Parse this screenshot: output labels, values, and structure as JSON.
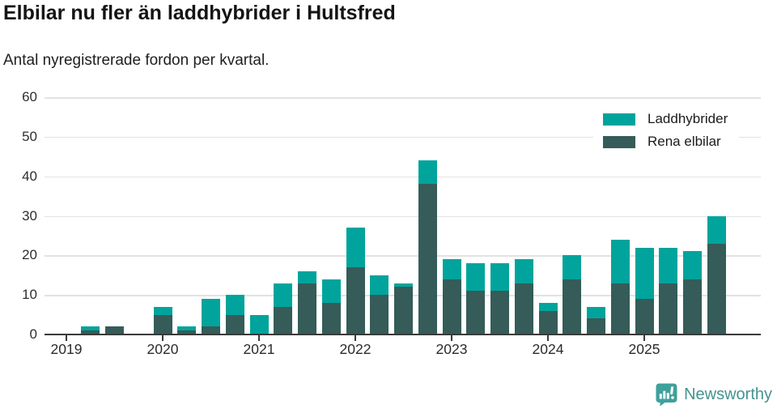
{
  "header": {
    "title": "Elbilar nu fler än laddhybrider i Hultsfred",
    "subtitle": "Antal nyregistrerade fordon per kvartal."
  },
  "chart_data": {
    "type": "bar",
    "stacked": true,
    "title": "Elbilar nu fler än laddhybrider i Hultsfred",
    "subtitle": "Antal nyregistrerade fordon per kvartal.",
    "x_unit": "quarter",
    "quarters": [
      "2019-Q1",
      "2019-Q2",
      "2019-Q3",
      "2019-Q4",
      "2020-Q1",
      "2020-Q2",
      "2020-Q3",
      "2020-Q4",
      "2021-Q1",
      "2021-Q2",
      "2021-Q3",
      "2021-Q4",
      "2022-Q1",
      "2022-Q2",
      "2022-Q3",
      "2022-Q4",
      "2023-Q1",
      "2023-Q2",
      "2023-Q3",
      "2023-Q4",
      "2024-Q1",
      "2024-Q2",
      "2024-Q3",
      "2024-Q4",
      "2025-Q1",
      "2025-Q2",
      "2025-Q3",
      "2025-Q4"
    ],
    "year_labels": [
      "2019",
      "2020",
      "2021",
      "2022",
      "2023",
      "2024",
      "2025"
    ],
    "series": [
      {
        "name": "Laddhybrider",
        "color": "#00a49c",
        "stack_position": "top",
        "values": [
          0,
          1,
          0,
          0,
          2,
          1,
          7,
          5,
          5,
          6,
          3,
          6,
          10,
          5,
          1,
          6,
          5,
          7,
          7,
          6,
          2,
          6,
          3,
          11,
          13,
          9,
          7,
          7
        ]
      },
      {
        "name": "Rena elbilar",
        "color": "#355c58",
        "stack_position": "bottom",
        "values": [
          0,
          1,
          2,
          0,
          5,
          1,
          2,
          5,
          0,
          7,
          13,
          8,
          17,
          10,
          12,
          38,
          14,
          11,
          11,
          13,
          6,
          14,
          4,
          13,
          9,
          13,
          14,
          23
        ]
      }
    ],
    "totals": [
      0,
      2,
      2,
      0,
      7,
      2,
      9,
      10,
      5,
      13,
      16,
      14,
      27,
      15,
      13,
      44,
      19,
      18,
      18,
      19,
      8,
      20,
      7,
      24,
      22,
      22,
      21,
      30
    ],
    "y_ticks": [
      0,
      10,
      20,
      30,
      40,
      50,
      60
    ],
    "ylim": [
      0,
      60
    ],
    "grid": "horizontal",
    "legend_position": "top-right"
  },
  "colors": {
    "laddhybrider": "#00a49c",
    "rena_elbilar": "#355c58",
    "gridline": "#e2e2e2",
    "axis": "#3a3a3a",
    "brand": "#459390",
    "brand_icon": "#3fa09c"
  },
  "footer": {
    "brand": "Newsworthy"
  }
}
